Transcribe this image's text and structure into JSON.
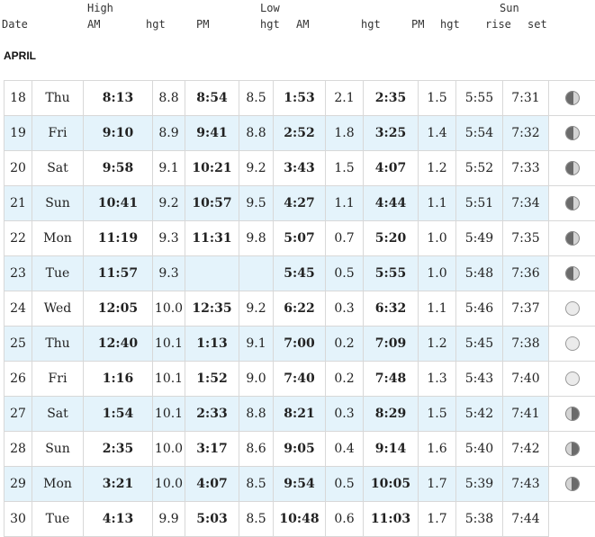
{
  "header": {
    "date": "Date",
    "high": "High",
    "low": "Low",
    "sun": "Sun",
    "high_am": "AM",
    "high_hgt1": "hgt",
    "high_pm": "PM",
    "high_hgt2": "hgt",
    "low_am": "AM",
    "low_hgt1": "hgt",
    "low_pm": "PM",
    "low_hgt2": "hgt",
    "rise": "rise",
    "set": "set"
  },
  "month": "APRIL",
  "rows": [
    {
      "day": "18",
      "dow": "Thu",
      "high_am": "8:13",
      "high_am_hgt": "8.8",
      "high_pm": "8:54",
      "high_pm_hgt": "8.5",
      "low_am": "1:53",
      "low_am_hgt": "2.1",
      "low_pm": "2:35",
      "low_pm_hgt": "1.5",
      "rise": "5:55",
      "set": "7:31",
      "moon": "waxing-gibbous-moon-icon"
    },
    {
      "day": "19",
      "dow": "Fri",
      "high_am": "9:10",
      "high_am_hgt": "8.9",
      "high_pm": "9:41",
      "high_pm_hgt": "8.8",
      "low_am": "2:52",
      "low_am_hgt": "1.8",
      "low_pm": "3:25",
      "low_pm_hgt": "1.4",
      "rise": "5:54",
      "set": "7:32",
      "moon": "waxing-gibbous-moon-icon"
    },
    {
      "day": "20",
      "dow": "Sat",
      "high_am": "9:58",
      "high_am_hgt": "9.1",
      "high_pm": "10:21",
      "high_pm_hgt": "9.2",
      "low_am": "3:43",
      "low_am_hgt": "1.5",
      "low_pm": "4:07",
      "low_pm_hgt": "1.2",
      "rise": "5:52",
      "set": "7:33",
      "moon": "waxing-gibbous-moon-icon"
    },
    {
      "day": "21",
      "dow": "Sun",
      "high_am": "10:41",
      "high_am_hgt": "9.2",
      "high_pm": "10:57",
      "high_pm_hgt": "9.5",
      "low_am": "4:27",
      "low_am_hgt": "1.1",
      "low_pm": "4:44",
      "low_pm_hgt": "1.1",
      "rise": "5:51",
      "set": "7:34",
      "moon": "waxing-gibbous-moon-icon"
    },
    {
      "day": "22",
      "dow": "Mon",
      "high_am": "11:19",
      "high_am_hgt": "9.3",
      "high_pm": "11:31",
      "high_pm_hgt": "9.8",
      "low_am": "5:07",
      "low_am_hgt": "0.7",
      "low_pm": "5:20",
      "low_pm_hgt": "1.0",
      "rise": "5:49",
      "set": "7:35",
      "moon": "waxing-gibbous-moon-icon"
    },
    {
      "day": "23",
      "dow": "Tue",
      "high_am": "11:57",
      "high_am_hgt": "9.3",
      "high_pm": "",
      "high_pm_hgt": "",
      "low_am": "5:45",
      "low_am_hgt": "0.5",
      "low_pm": "5:55",
      "low_pm_hgt": "1.0",
      "rise": "5:48",
      "set": "7:36",
      "moon": "waxing-gibbous-moon-icon"
    },
    {
      "day": "24",
      "dow": "Wed",
      "high_am": "12:05",
      "high_am_hgt": "10.0",
      "high_pm": "12:35",
      "high_pm_hgt": "9.2",
      "low_am": "6:22",
      "low_am_hgt": "0.3",
      "low_pm": "6:32",
      "low_pm_hgt": "1.1",
      "rise": "5:46",
      "set": "7:37",
      "moon": "full-moon-icon"
    },
    {
      "day": "25",
      "dow": "Thu",
      "high_am": "12:40",
      "high_am_hgt": "10.1",
      "high_pm": "1:13",
      "high_pm_hgt": "9.1",
      "low_am": "7:00",
      "low_am_hgt": "0.2",
      "low_pm": "7:09",
      "low_pm_hgt": "1.2",
      "rise": "5:45",
      "set": "7:38",
      "moon": "full-moon-icon"
    },
    {
      "day": "26",
      "dow": "Fri",
      "high_am": "1:16",
      "high_am_hgt": "10.1",
      "high_pm": "1:52",
      "high_pm_hgt": "9.0",
      "low_am": "7:40",
      "low_am_hgt": "0.2",
      "low_pm": "7:48",
      "low_pm_hgt": "1.3",
      "rise": "5:43",
      "set": "7:40",
      "moon": "full-moon-icon"
    },
    {
      "day": "27",
      "dow": "Sat",
      "high_am": "1:54",
      "high_am_hgt": "10.1",
      "high_pm": "2:33",
      "high_pm_hgt": "8.8",
      "low_am": "8:21",
      "low_am_hgt": "0.3",
      "low_pm": "8:29",
      "low_pm_hgt": "1.5",
      "rise": "5:42",
      "set": "7:41",
      "moon": "waning-gibbous-moon-icon"
    },
    {
      "day": "28",
      "dow": "Sun",
      "high_am": "2:35",
      "high_am_hgt": "10.0",
      "high_pm": "3:17",
      "high_pm_hgt": "8.6",
      "low_am": "9:05",
      "low_am_hgt": "0.4",
      "low_pm": "9:14",
      "low_pm_hgt": "1.6",
      "rise": "5:40",
      "set": "7:42",
      "moon": "waning-gibbous-moon-icon"
    },
    {
      "day": "29",
      "dow": "Mon",
      "high_am": "3:21",
      "high_am_hgt": "10.0",
      "high_pm": "4:07",
      "high_pm_hgt": "8.5",
      "low_am": "9:54",
      "low_am_hgt": "0.5",
      "low_pm": "10:05",
      "low_pm_hgt": "1.7",
      "rise": "5:39",
      "set": "7:43",
      "moon": "waning-gibbous-moon-icon"
    },
    {
      "day": "30",
      "dow": "Tue",
      "high_am": "4:13",
      "high_am_hgt": "9.9",
      "high_pm": "5:03",
      "high_pm_hgt": "8.5",
      "low_am": "10:48",
      "low_am_hgt": "0.6",
      "low_pm": "11:03",
      "low_pm_hgt": "1.7",
      "rise": "5:38",
      "set": "7:44",
      "moon": ""
    }
  ]
}
